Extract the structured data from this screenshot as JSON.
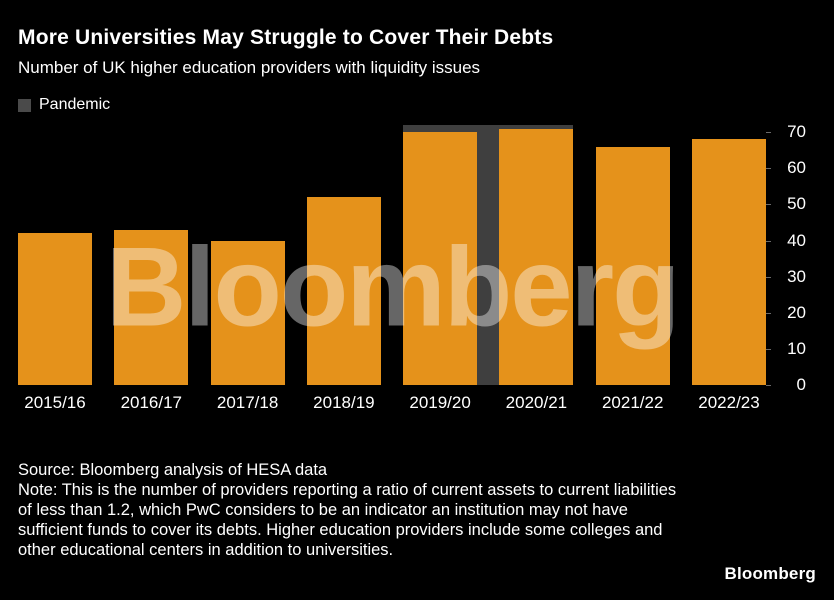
{
  "header": {
    "title": "More Universities May Struggle to Cover Their Debts",
    "subtitle": "Number of UK higher education providers with liquidity issues"
  },
  "legend": {
    "pandemic_label": "Pandemic",
    "pandemic_color": "#4a4a4a"
  },
  "chart_data": {
    "type": "bar",
    "title": "More Universities May Struggle to Cover Their Debts",
    "subtitle": "Number of UK higher education providers with liquidity issues",
    "categories": [
      "2015/16",
      "2016/17",
      "2017/18",
      "2018/19",
      "2019/20",
      "2020/21",
      "2021/22",
      "2022/23"
    ],
    "values": [
      42,
      43,
      40,
      52,
      70,
      71,
      66,
      68
    ],
    "xlabel": "",
    "ylabel": "",
    "ylim": [
      0,
      70
    ],
    "yticks": [
      0,
      10,
      20,
      30,
      40,
      50,
      60,
      70
    ],
    "yaxis_position": "right",
    "grid": false,
    "legend_position": "top-left",
    "bar_color": "#E5921B",
    "background_color": "#000000",
    "pandemic_band": {
      "label": "Pandemic",
      "from_category": "2019/20",
      "to_category": "2020/21",
      "color": "#3f3f3f"
    },
    "watermark": "Bloomberg"
  },
  "footer": {
    "source": "Source: Bloomberg analysis of HESA data",
    "note": "Note: This is the number of providers reporting a ratio of current assets to current liabilities of less than 1.2, which PwC considers to be an indicator an institution may not have sufficient funds to cover its debts. Higher education providers include some colleges and other educational centers in addition to universities.",
    "logo": "Bloomberg"
  }
}
